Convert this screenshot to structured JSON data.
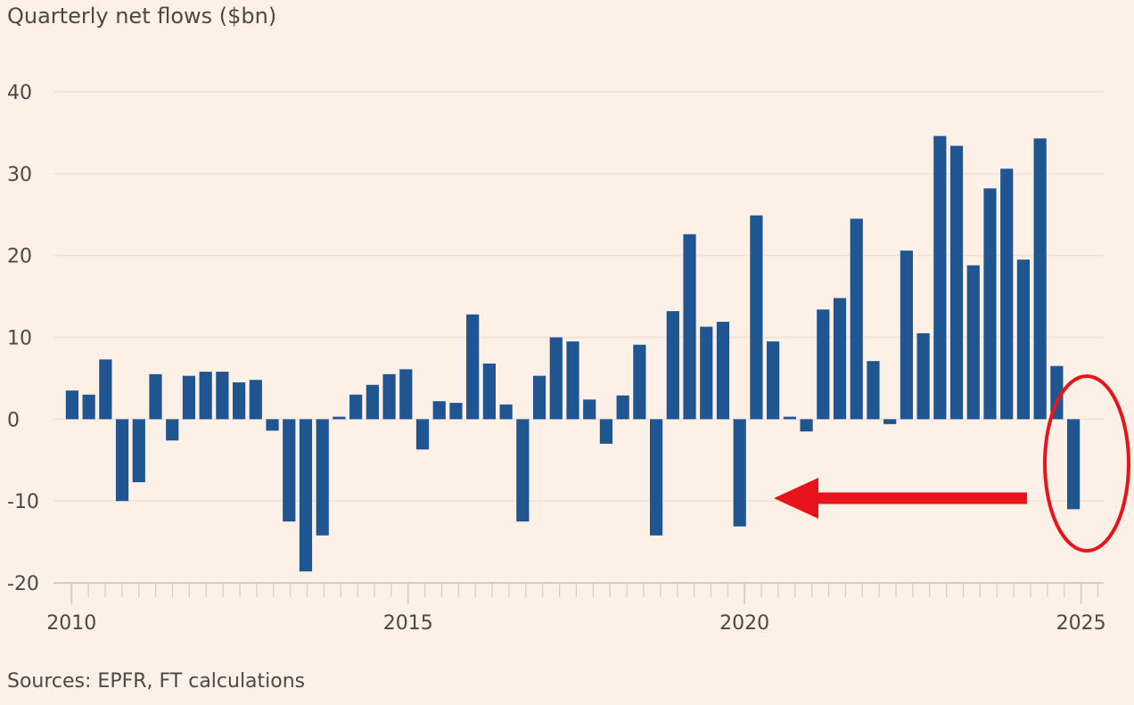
{
  "chart_data": {
    "type": "bar",
    "title": "Quarterly net flows ($bn)",
    "source": "Sources: EPFR, FT calculations",
    "xlabel": "",
    "ylabel": "",
    "ylim": [
      -20,
      40
    ],
    "yticks": [
      40,
      30,
      20,
      10,
      0,
      -10,
      -20
    ],
    "ytick_labels": [
      "40",
      "30",
      "20",
      "10",
      "0",
      "-10",
      "-20"
    ],
    "xlim": [
      2010,
      2025.25
    ],
    "xticks": [
      2010,
      2015,
      2020,
      2025
    ],
    "xtick_labels": [
      "2010",
      "2015",
      "2020",
      "2025"
    ],
    "grid": true,
    "bar_color": "#1f5591",
    "annotation_color": "#e8141c",
    "series": [
      {
        "name": "Quarterly net flows",
        "quarters": [
          "2010 Q1",
          "2010 Q2",
          "2010 Q3",
          "2010 Q4",
          "2011 Q1",
          "2011 Q2",
          "2011 Q3",
          "2011 Q4",
          "2012 Q1",
          "2012 Q2",
          "2012 Q3",
          "2012 Q4",
          "2013 Q1",
          "2013 Q2",
          "2013 Q3",
          "2013 Q4",
          "2014 Q1",
          "2014 Q2",
          "2014 Q3",
          "2014 Q4",
          "2015 Q1",
          "2015 Q2",
          "2015 Q3",
          "2015 Q4",
          "2016 Q1",
          "2016 Q2",
          "2016 Q3",
          "2016 Q4",
          "2017 Q1",
          "2017 Q2",
          "2017 Q3",
          "2017 Q4",
          "2018 Q1",
          "2018 Q2",
          "2018 Q3",
          "2018 Q4",
          "2019 Q1",
          "2019 Q2",
          "2019 Q3",
          "2019 Q4",
          "2020 Q1",
          "2020 Q2",
          "2020 Q3",
          "2020 Q4",
          "2021 Q1",
          "2021 Q2",
          "2021 Q3",
          "2021 Q4",
          "2022 Q1",
          "2022 Q2",
          "2022 Q3",
          "2022 Q4",
          "2023 Q1",
          "2023 Q2",
          "2023 Q3",
          "2023 Q4",
          "2024 Q1",
          "2024 Q2",
          "2024 Q3",
          "2024 Q4",
          "2025 Q1"
        ],
        "values": [
          3.5,
          3.0,
          7.3,
          -10.0,
          -7.7,
          5.5,
          -2.6,
          5.3,
          5.8,
          5.8,
          4.5,
          4.8,
          -1.4,
          -12.5,
          -18.6,
          -14.2,
          0.3,
          3.0,
          4.2,
          5.5,
          6.1,
          -3.7,
          2.2,
          2.0,
          12.8,
          6.8,
          1.8,
          -12.5,
          5.3,
          10.0,
          9.5,
          2.4,
          -3.0,
          2.9,
          9.1,
          -14.2,
          13.2,
          22.6,
          11.3,
          11.9,
          -13.1,
          24.9,
          9.5,
          0.3,
          -1.5,
          13.4,
          14.8,
          24.5,
          7.1,
          -0.6,
          20.6,
          10.5,
          34.6,
          33.4,
          18.8,
          28.2,
          30.6,
          19.5,
          34.3,
          6.5,
          -11.0
        ]
      }
    ]
  }
}
